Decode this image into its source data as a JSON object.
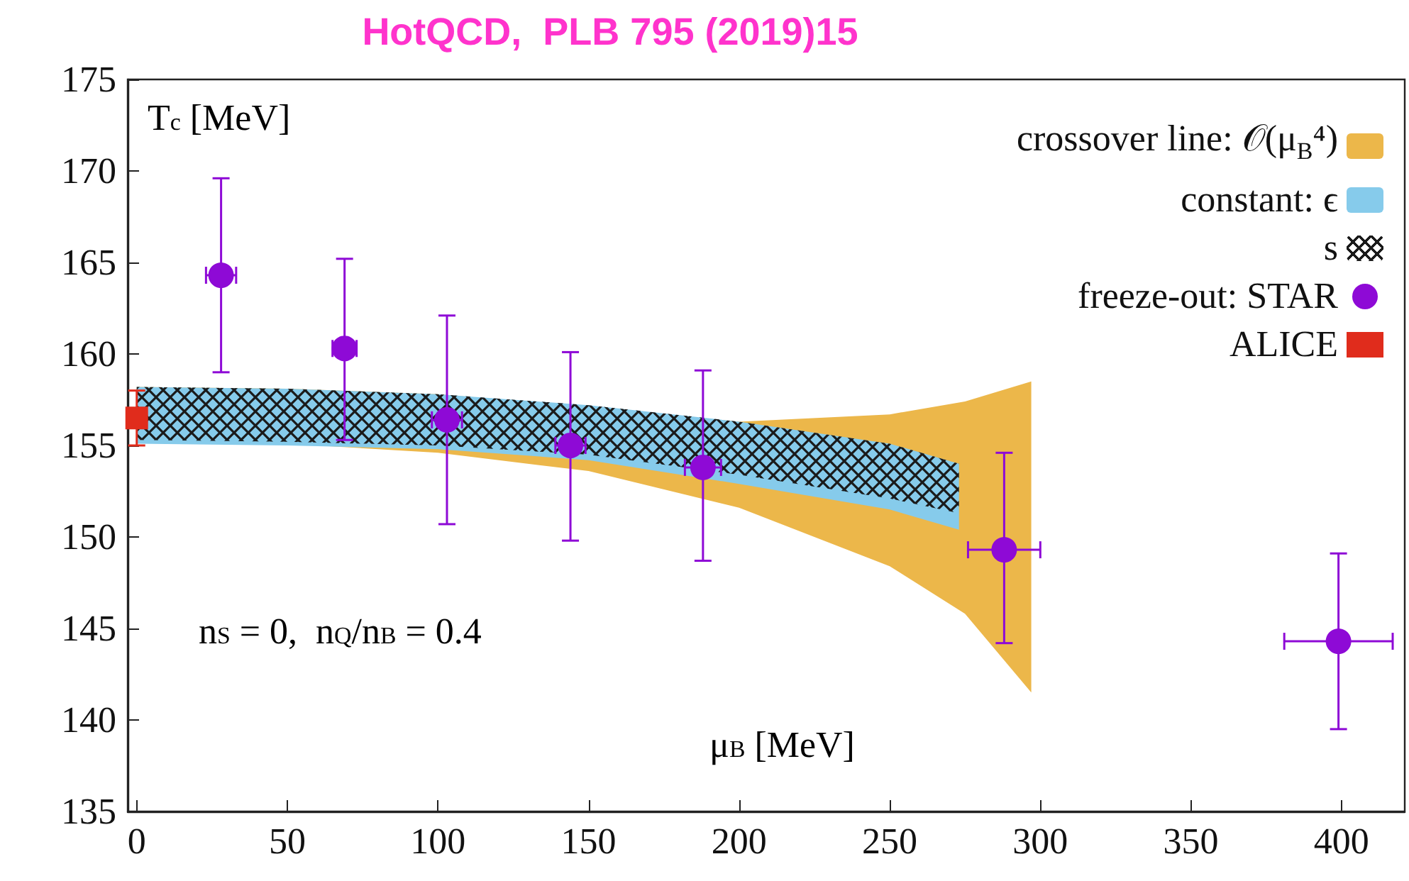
{
  "chart_data": {
    "type": "scatter",
    "title": "HotQCD,  PLB 795 (2019)15",
    "xlabel": "μ$_{B}$ [MeV]",
    "ylabel": "T$_{c}$ [MeV]",
    "annotations": [
      "n$_{S}$ = 0,  n$_{Q}$/n$_{B}$ = 0.4"
    ],
    "xlim": [
      -3,
      421
    ],
    "xticks": [
      0,
      50,
      100,
      150,
      200,
      250,
      300,
      350,
      400
    ],
    "ylim": [
      135,
      175
    ],
    "yticks": [
      135,
      140,
      145,
      150,
      155,
      160,
      165,
      170,
      175
    ],
    "legend": "top right",
    "series": [
      {
        "name": "crossover line: 𝒪(μ$_{B}$⁴)",
        "type": "area",
        "color": "#ecb74a",
        "x": [
          0,
          50,
          100,
          150,
          200,
          250,
          275,
          297
        ],
        "values": [
          null,
          null,
          null,
          null,
          null,
          null,
          null,
          null
        ],
        "lower": [
          155.2,
          155.1,
          154.6,
          153.6,
          151.6,
          148.4,
          145.8,
          141.5
        ],
        "upper": [
          158.2,
          158.1,
          157.8,
          157.1,
          156.3,
          156.7,
          157.4,
          158.5
        ]
      },
      {
        "name": "constant: ϵ",
        "type": "area",
        "color": "#86cbeb",
        "x": [
          0,
          50,
          100,
          150,
          200,
          250,
          273
        ],
        "values": [
          null,
          null,
          null,
          null,
          null,
          null,
          null
        ],
        "lower": [
          155.1,
          155.0,
          154.8,
          154.2,
          152.9,
          151.5,
          150.4
        ],
        "upper": [
          158.2,
          158.1,
          157.8,
          157.2,
          156.3,
          155.1,
          154.0
        ]
      },
      {
        "name": "s",
        "type": "area",
        "color": "#1a1a1a",
        "x": [
          0,
          50,
          100,
          150,
          200,
          250,
          273
        ],
        "values": [
          null,
          null,
          null,
          null,
          null,
          null,
          null
        ],
        "lower": [
          155.3,
          155.2,
          155.0,
          154.5,
          153.4,
          152.1,
          151.3
        ],
        "upper": [
          158.2,
          158.1,
          157.8,
          157.2,
          156.3,
          155.1,
          154.0
        ]
      },
      {
        "name": "freeze-out: STAR",
        "type": "scatter",
        "marker": "circle",
        "color": "#8e0ad6",
        "x": [
          28,
          69,
          103,
          144,
          188,
          288,
          399
        ],
        "values": [
          164.3,
          160.3,
          156.4,
          155.0,
          153.8,
          149.3,
          144.3
        ],
        "errors": [
          [
            159.0,
            169.6
          ],
          [
            155.3,
            165.2
          ],
          [
            150.7,
            162.1
          ],
          [
            149.8,
            160.1
          ],
          [
            148.7,
            159.1
          ],
          [
            144.2,
            154.6
          ],
          [
            139.5,
            149.1
          ]
        ],
        "xerrors": [
          5,
          4,
          5,
          5,
          6,
          12,
          18
        ]
      },
      {
        "name": "ALICE",
        "marker": "square",
        "color": "#e02c1c",
        "x": [
          0
        ],
        "values": [
          156.5
        ],
        "errors": [
          [
            155.0,
            158.0
          ]
        ],
        "xerrors": [
          2
        ]
      }
    ]
  }
}
